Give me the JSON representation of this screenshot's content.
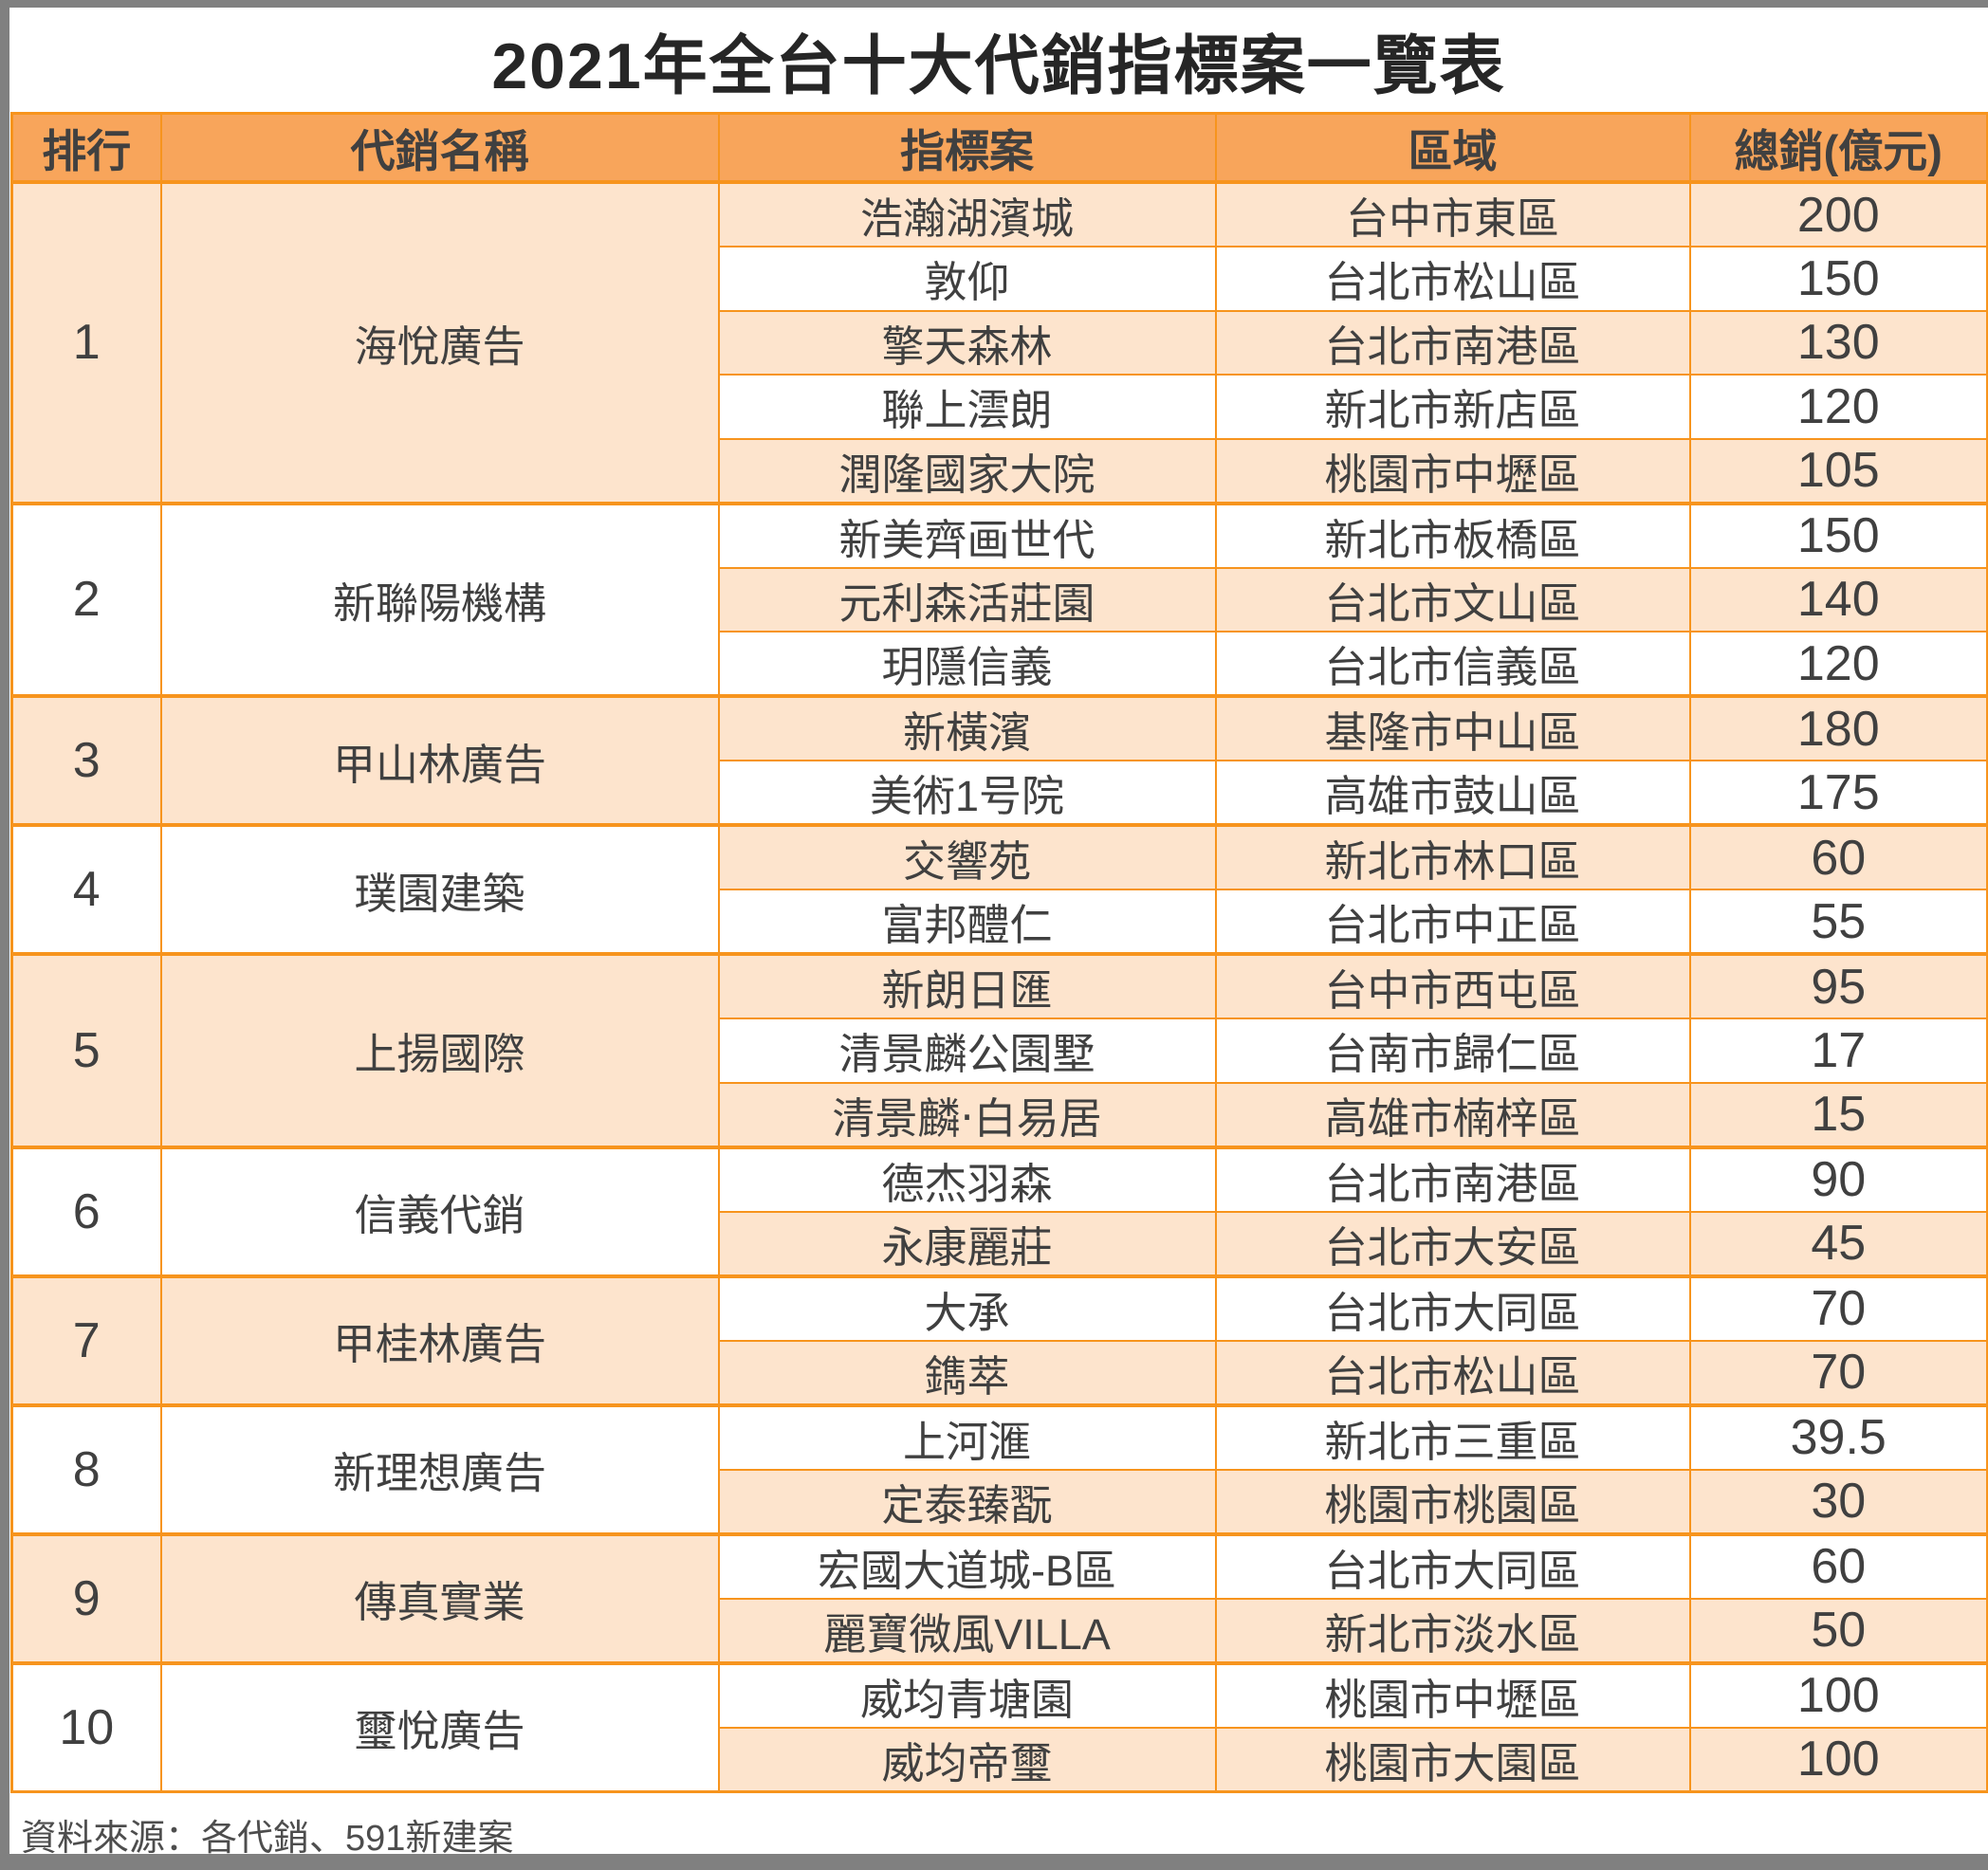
{
  "colors": {
    "frame": "#808080",
    "table_border": "#F7941D",
    "header_bg": "#F8A55B",
    "row_stripe_bg": "#FDE4CD",
    "row_plain_bg": "#FFFFFF",
    "cell_text": "#404040",
    "title_text": "#262626",
    "source_text": "#4D4D4D"
  },
  "chart_data": {
    "type": "table",
    "title": "2021年全台十大代銷指標案一覽表",
    "columns": [
      "排行",
      "代銷名稱",
      "指標案",
      "區域",
      "總銷(億元)"
    ],
    "column_keys": [
      "rank",
      "agency",
      "project",
      "region",
      "total_100m_ntd"
    ],
    "source": "資料來源：各代銷、591新建案",
    "groups": [
      {
        "rank": "1",
        "agency": "海悅廣告",
        "projects": [
          {
            "name": "浩瀚湖濱城",
            "region": "台中市東區",
            "total": "200"
          },
          {
            "name": "敦仰",
            "region": "台北市松山區",
            "total": "150"
          },
          {
            "name": "擎天森林",
            "region": "台北市南港區",
            "total": "130"
          },
          {
            "name": "聯上澐朗",
            "region": "新北市新店區",
            "total": "120"
          },
          {
            "name": "潤隆國家大院",
            "region": "桃園市中壢區",
            "total": "105"
          }
        ]
      },
      {
        "rank": "2",
        "agency": "新聯陽機構",
        "projects": [
          {
            "name": "新美齊画世代",
            "region": "新北市板橋區",
            "total": "150"
          },
          {
            "name": "元利森活莊園",
            "region": "台北市文山區",
            "total": "140"
          },
          {
            "name": "玥隱信義",
            "region": "台北市信義區",
            "total": "120"
          }
        ]
      },
      {
        "rank": "3",
        "agency": "甲山林廣告",
        "projects": [
          {
            "name": "新橫濱",
            "region": "基隆市中山區",
            "total": "180"
          },
          {
            "name": "美術1号院",
            "region": "高雄市鼓山區",
            "total": "175"
          }
        ]
      },
      {
        "rank": "4",
        "agency": "璞園建築",
        "projects": [
          {
            "name": "交響苑",
            "region": "新北市林口區",
            "total": "60"
          },
          {
            "name": "富邦醴仁",
            "region": "台北市中正區",
            "total": "55"
          }
        ]
      },
      {
        "rank": "5",
        "agency": "上揚國際",
        "projects": [
          {
            "name": "新朗日匯",
            "region": "台中市西屯區",
            "total": "95"
          },
          {
            "name": "清景麟公園墅",
            "region": "台南市歸仁區",
            "total": "17"
          },
          {
            "name": "清景麟‧白易居",
            "region": "高雄市楠梓區",
            "total": "15"
          }
        ]
      },
      {
        "rank": "6",
        "agency": "信義代銷",
        "projects": [
          {
            "name": "德杰羽森",
            "region": "台北市南港區",
            "total": "90"
          },
          {
            "name": "永康麗莊",
            "region": "台北市大安區",
            "total": "45"
          }
        ]
      },
      {
        "rank": "7",
        "agency": "甲桂林廣告",
        "projects": [
          {
            "name": "大承",
            "region": "台北市大同區",
            "total": "70"
          },
          {
            "name": "鐫萃",
            "region": "台北市松山區",
            "total": "70"
          }
        ]
      },
      {
        "rank": "8",
        "agency": "新理想廣告",
        "projects": [
          {
            "name": "上河滙",
            "region": "新北市三重區",
            "total": "39.5"
          },
          {
            "name": "定泰臻翫",
            "region": "桃園市桃園區",
            "total": "30"
          }
        ]
      },
      {
        "rank": "9",
        "agency": "傳真實業",
        "projects": [
          {
            "name": "宏國大道城-B區",
            "region": "台北市大同區",
            "total": "60"
          },
          {
            "name": "麗寶微風VILLA",
            "region": "新北市淡水區",
            "total": "50"
          }
        ]
      },
      {
        "rank": "10",
        "agency": "璽悅廣告",
        "projects": [
          {
            "name": "威均青塘園",
            "region": "桃園市中壢區",
            "total": "100"
          },
          {
            "name": "威均帝璽",
            "region": "桃園市大園區",
            "total": "100"
          }
        ]
      }
    ]
  }
}
